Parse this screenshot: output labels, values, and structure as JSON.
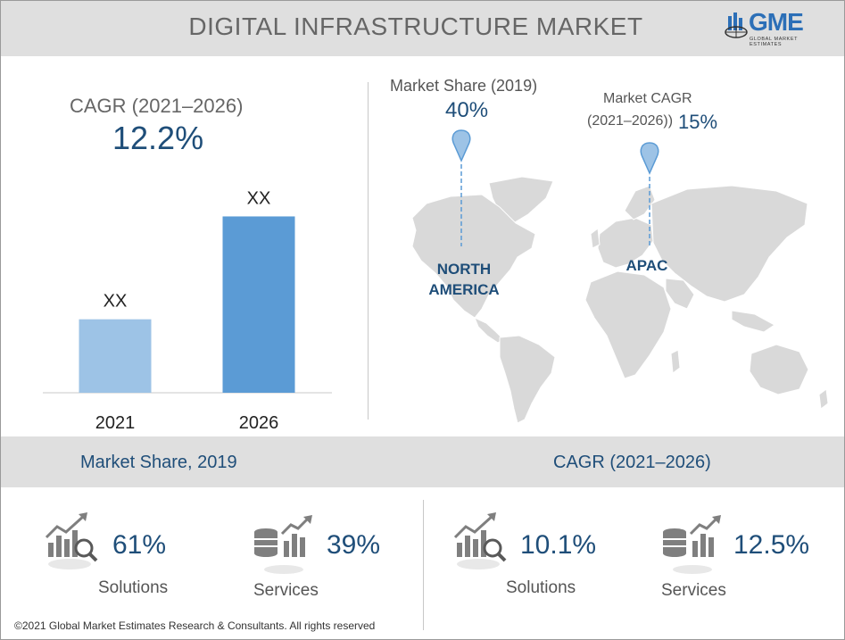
{
  "header": {
    "title": "DIGITAL INFRASTRUCTURE MARKET",
    "logo_text": "GME",
    "logo_sub": "GLOBAL MARKET ESTIMATES"
  },
  "left_panel": {
    "cagr_label": "CAGR (2021–2026)",
    "cagr_value": "12.2%"
  },
  "chart_data": {
    "type": "bar",
    "categories": [
      "2021",
      "2026"
    ],
    "values": [
      1,
      2.4
    ],
    "data_labels": [
      "XX",
      "XX"
    ],
    "colors": [
      "#9dc3e6",
      "#5b9bd5"
    ],
    "title": "",
    "xlabel": "",
    "ylabel": "",
    "ylim": [
      0,
      2.6
    ],
    "grid": false
  },
  "map": {
    "market_share_label": "Market Share (2019)",
    "market_share_value": "40%",
    "cagr_label_line1": "Market CAGR",
    "cagr_label_line2": "(2021–2026))",
    "cagr_value": "15%",
    "region_na_line1": "NORTH",
    "region_na_line2": "AMERICA",
    "region_apac": "APAC"
  },
  "band": {
    "left_title": "Market Share, 2019",
    "right_title": "CAGR (2021–2026)"
  },
  "stats": {
    "share_solutions_value": "61%",
    "share_solutions_label": "Solutions",
    "share_services_value": "39%",
    "share_services_label": "Services",
    "cagr_solutions_value": "10.1%",
    "cagr_solutions_label": "Solutions",
    "cagr_services_value": "12.5%",
    "cagr_services_label": "Services"
  },
  "footer": {
    "copyright": "©2021 Global Market Estimates Research & Consultants. All rights reserved"
  },
  "colors": {
    "accent": "#1f4e79",
    "header_bg": "#dfdfdf",
    "map_fill": "#d9d9d9",
    "pin": "#9dc3e6",
    "logo_blue": "#2c6fb7"
  }
}
